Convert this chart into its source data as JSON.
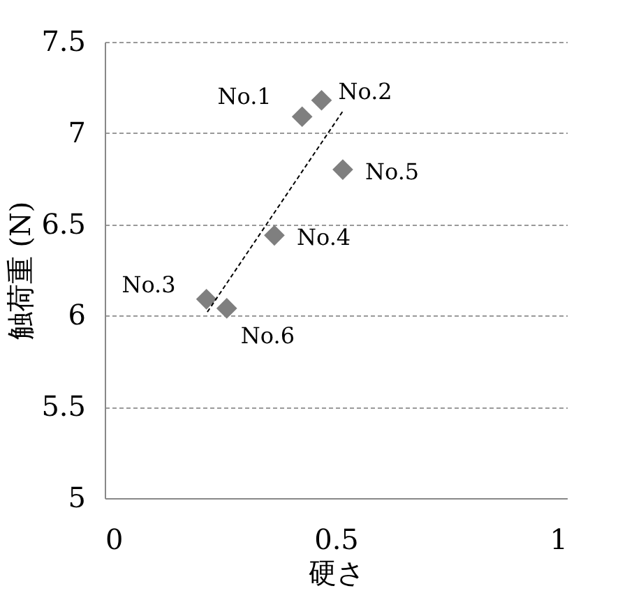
{
  "chart_data": {
    "type": "scatter",
    "xlabel": "硬さ",
    "ylabel": "触荷重 (N)",
    "xlim": [
      0,
      1
    ],
    "xticks": [
      0,
      0.5,
      1
    ],
    "ylim": [
      5,
      7.5
    ],
    "yticks": [
      5,
      5.5,
      6,
      6.5,
      7,
      7.5
    ],
    "grid": "y",
    "marker": "diamond",
    "series": [
      {
        "name": "No.1",
        "color": "#7f7f7f",
        "x": [
          0.427
        ],
        "values": [
          7.09
        ]
      },
      {
        "name": "No.2",
        "color": "#7f7f7f",
        "x": [
          0.469
        ],
        "values": [
          7.18
        ]
      },
      {
        "name": "No.3",
        "color": "#7f7f7f",
        "x": [
          0.22
        ],
        "values": [
          6.09
        ]
      },
      {
        "name": "No.4",
        "color": "#7f7f7f",
        "x": [
          0.367
        ],
        "values": [
          6.44
        ]
      },
      {
        "name": "No.5",
        "color": "#7f7f7f",
        "x": [
          0.515
        ],
        "values": [
          6.8
        ]
      },
      {
        "name": "No.6",
        "color": "#7f7f7f",
        "x": [
          0.264
        ],
        "values": [
          6.04
        ]
      },
      {
        "type": "line",
        "color": "#000000",
        "line_style": "dashed",
        "marker": "none",
        "x": [
          0.222,
          0.515
        ],
        "values": [
          6.02,
          7.12
        ]
      }
    ]
  }
}
